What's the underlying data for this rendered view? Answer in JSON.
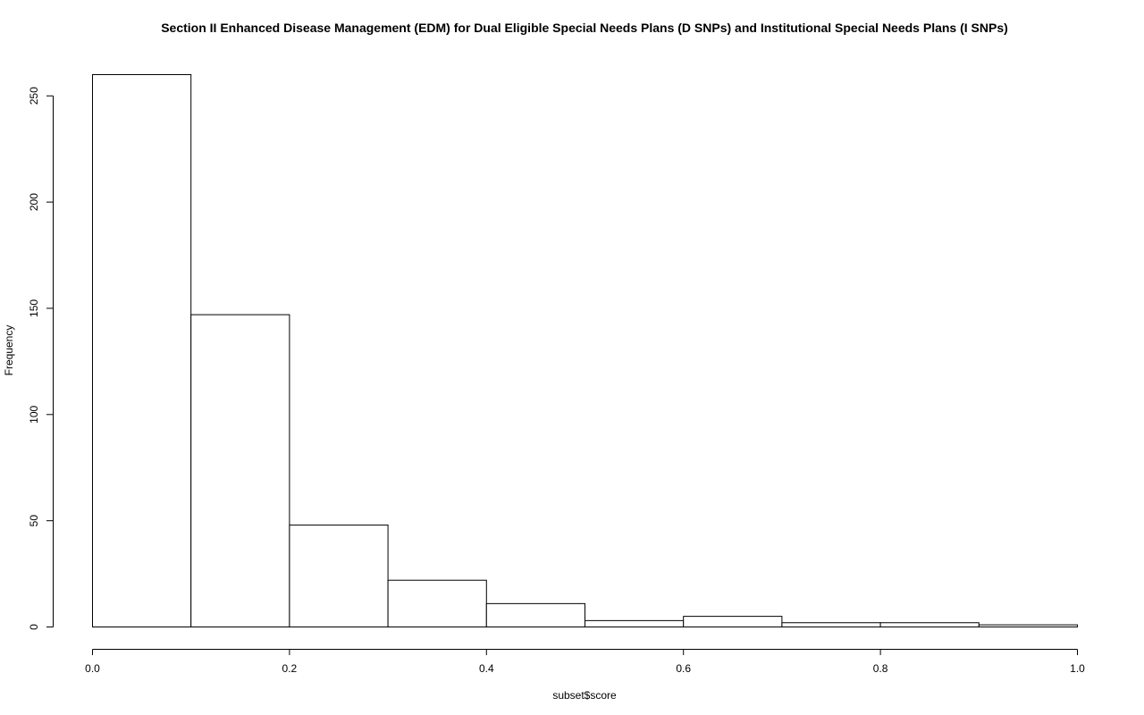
{
  "chart_data": {
    "type": "bar",
    "title": "Section II Enhanced Disease Management (EDM) for Dual Eligible Special Needs Plans (D SNPs) and Institutional Special Needs Plans (I SNPs)",
    "xlabel": "subset$score",
    "ylabel": "Frequency",
    "bins": [
      [
        0.0,
        0.1
      ],
      [
        0.1,
        0.2
      ],
      [
        0.2,
        0.3
      ],
      [
        0.3,
        0.4
      ],
      [
        0.4,
        0.5
      ],
      [
        0.5,
        0.6
      ],
      [
        0.6,
        0.7
      ],
      [
        0.7,
        0.8
      ],
      [
        0.8,
        0.9
      ],
      [
        0.9,
        1.0
      ]
    ],
    "values": [
      260,
      147,
      48,
      22,
      11,
      3,
      5,
      2,
      2,
      1
    ],
    "xlim": [
      0,
      1
    ],
    "ylim": [
      0,
      260
    ],
    "x_ticks": [
      "0.0",
      "0.2",
      "0.4",
      "0.6",
      "0.8",
      "1.0"
    ],
    "y_ticks": [
      "0",
      "50",
      "100",
      "150",
      "200",
      "250"
    ],
    "grid": false,
    "legend": "none",
    "bar_fill": "#ffffff",
    "bar_stroke": "#000000"
  }
}
